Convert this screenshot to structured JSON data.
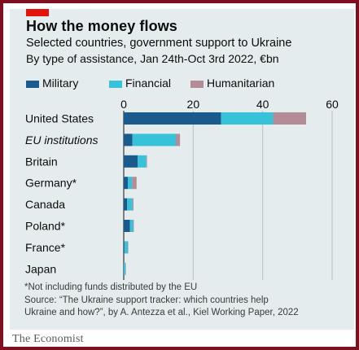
{
  "header": {
    "title": "How the money flows",
    "subtitle": "Selected countries, government support to Ukraine",
    "subtitle2": "By type of assistance, Jan 24th-Oct 3rd 2022, €bn"
  },
  "legend": [
    {
      "label": "Military",
      "color": "#1a5a8c"
    },
    {
      "label": "Financial",
      "color": "#36c2d9"
    },
    {
      "label": "Humanitarian",
      "color": "#b38c98"
    }
  ],
  "chart_data": {
    "type": "bar",
    "orientation": "horizontal",
    "stacked": true,
    "categories": [
      "United States",
      "EU institutions",
      "Britain",
      "Germany*",
      "Canada",
      "Poland*",
      "France*",
      "Japan"
    ],
    "italic_categories": [
      "EU institutions"
    ],
    "series": [
      {
        "name": "Military",
        "values": [
          28.0,
          2.5,
          4.0,
          1.2,
          1.0,
          1.8,
          0.2,
          0
        ]
      },
      {
        "name": "Financial",
        "values": [
          15.0,
          12.5,
          2.5,
          1.2,
          1.5,
          0.9,
          1.0,
          0.5
        ]
      },
      {
        "name": "Humanitarian",
        "values": [
          9.5,
          1.2,
          0.2,
          1.3,
          0.3,
          0.2,
          0.1,
          0.1
        ]
      }
    ],
    "xlim": [
      0,
      60
    ],
    "xticks": [
      0,
      20,
      40,
      60
    ],
    "xtick_labels": [
      "0",
      "20",
      "40",
      "60"
    ],
    "tick_position": "top",
    "grid": true
  },
  "notes": {
    "footnote": "*Not including funds distributed by the EU",
    "source_line1": "Source: “The Ukraine support tracker: which countries help",
    "source_line2": "Ukraine and how?”, by A. Antezza et al., Kiel Working Paper, 2022"
  },
  "brand": "The Economist"
}
